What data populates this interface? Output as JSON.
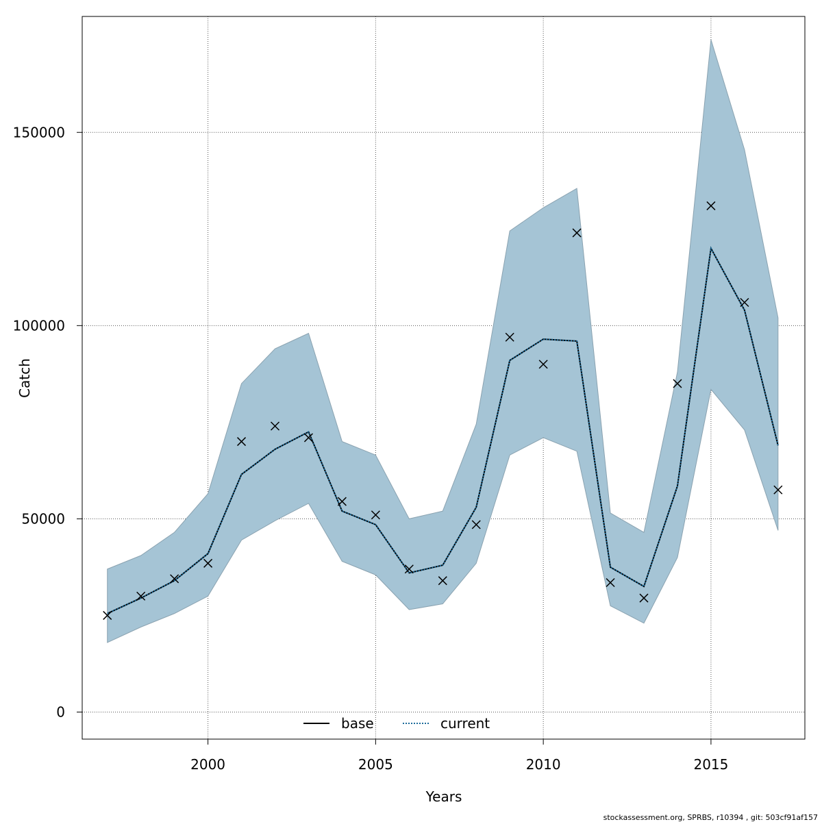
{
  "chart_data": {
    "type": "line",
    "xlabel": "Years",
    "ylabel": "Catch",
    "xlim": [
      1996.25,
      2017.8
    ],
    "ylim": [
      -7000,
      180000
    ],
    "x_ticks": [
      2000,
      2005,
      2010,
      2015
    ],
    "y_ticks": [
      0,
      50000,
      100000,
      150000
    ],
    "grid": true,
    "legend_placement": "bottom",
    "x": [
      1997,
      1998,
      1999,
      2000,
      2001,
      2002,
      2003,
      2004,
      2005,
      2006,
      2007,
      2008,
      2009,
      2010,
      2011,
      2012,
      2013,
      2014,
      2015,
      2016,
      2017
    ],
    "series": [
      {
        "name": "base",
        "style": "solid",
        "color": "#000000",
        "values": [
          25500,
          29500,
          34000,
          41000,
          61500,
          68000,
          72500,
          52000,
          48500,
          36000,
          38000,
          53000,
          91000,
          96500,
          96000,
          37500,
          32500,
          58500,
          120000,
          104000,
          69000
        ]
      },
      {
        "name": "current",
        "style": "dotted",
        "color": "#1a6a9a",
        "values": [
          25500,
          29500,
          34000,
          41000,
          61500,
          68000,
          72500,
          52000,
          48500,
          36000,
          38000,
          53000,
          91000,
          96500,
          96000,
          37500,
          32500,
          58500,
          120000,
          104000,
          69000
        ]
      }
    ],
    "band": {
      "color": "#a5c4d5",
      "upper": [
        37000,
        40500,
        46500,
        56500,
        85000,
        94000,
        98000,
        70000,
        66500,
        50000,
        52000,
        74500,
        124500,
        130500,
        135500,
        51500,
        46500,
        88000,
        174000,
        145500,
        102000
      ],
      "lower": [
        18000,
        22000,
        25500,
        30000,
        44500,
        49500,
        54000,
        39000,
        35500,
        26500,
        28000,
        38500,
        66500,
        71000,
        67500,
        27500,
        23000,
        40000,
        83500,
        73000,
        47000
      ]
    },
    "observed": {
      "marker": "x",
      "values": [
        25000,
        30000,
        34500,
        38500,
        70000,
        74000,
        71000,
        54500,
        51000,
        37000,
        34000,
        48500,
        97000,
        90000,
        124000,
        33500,
        29500,
        85000,
        131000,
        106000,
        57500
      ]
    }
  },
  "footer": "stockassessment.org, SPRBS, r10394 , git: 503cf91af157"
}
